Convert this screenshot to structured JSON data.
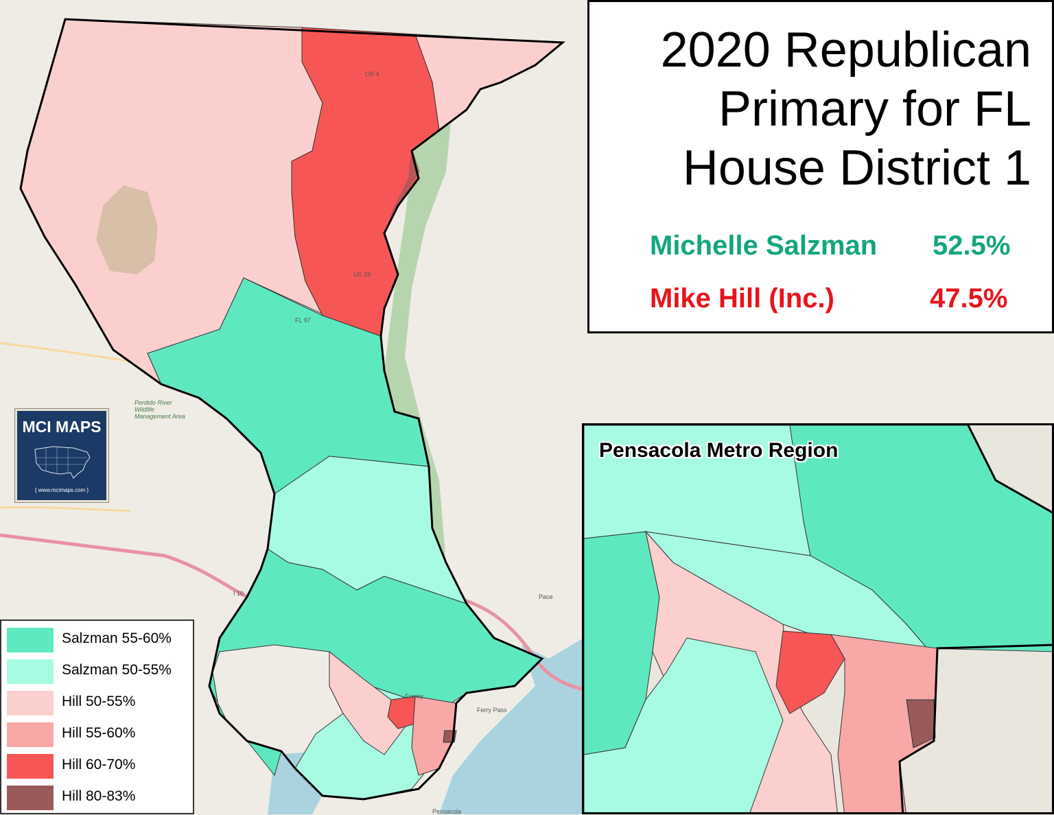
{
  "title": {
    "lines": [
      "2020 Republican",
      "Primary for FL",
      "House District 1"
    ]
  },
  "results": [
    {
      "name": "Michelle Salzman",
      "pct": "52.5%",
      "color": "#13a57f"
    },
    {
      "name": "Mike Hill (Inc.)",
      "pct": "47.5%",
      "color": "#e8141b"
    }
  ],
  "inset": {
    "title": "Pensacola Metro Region"
  },
  "logo": {
    "title": "MCI MAPS",
    "url": "{ www.mcimaps.com }"
  },
  "legend": [
    {
      "label": "Salzman 55-60%",
      "color": "#5ee8c0"
    },
    {
      "label": "Salzman 50-55%",
      "color": "#a8fbe3"
    },
    {
      "label": "Hill 50-55%",
      "color": "#fccfcf"
    },
    {
      "label": "Hill 55-60%",
      "color": "#f9a8a8"
    },
    {
      "label": "Hill 60-70%",
      "color": "#f75656"
    },
    {
      "label": "Hill 80-83%",
      "color": "#9a5a5a"
    }
  ],
  "basemap_labels": {
    "wma": "Perdido River Wildlife Management Area",
    "road_i10": "I 10",
    "road_us29": "US 29",
    "road_fl97": "FL 97",
    "road_cr4": "CR 4",
    "pensacola": "Pensacola",
    "ferry_pass": "Ferry Pass",
    "ensley": "Ensley",
    "pace": "Pace"
  }
}
